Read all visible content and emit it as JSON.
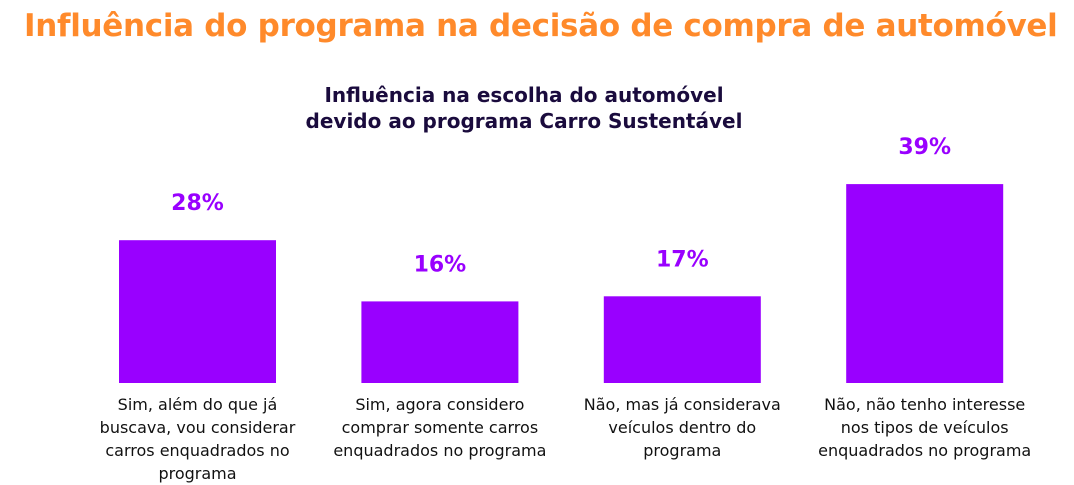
{
  "page_title": "Influência do programa na decisão de compra de automóvel",
  "chart_data": {
    "type": "bar",
    "title_lines": [
      "Influência na escolha do automóvel",
      "devido ao programa Carro Sustentável"
    ],
    "categories": [
      "Sim, além do que já buscava, vou considerar carros enquadrados no programa",
      "Sim, agora considero comprar somente carros enquadrados no programa",
      "Não, mas já considerava veículos dentro do programa",
      "Não, não tenho interesse nos tipos de veículos enquadrados no programa"
    ],
    "values": [
      28,
      16,
      17,
      39
    ],
    "data_labels": [
      "28%",
      "16%",
      "17%",
      "39%"
    ],
    "ylim": [
      0,
      40
    ],
    "grid": false,
    "bar_color": "#9900FF",
    "label_color": "#9900FF",
    "title_color": "#1A0B3D",
    "page_title_color": "#FF8A2B"
  }
}
